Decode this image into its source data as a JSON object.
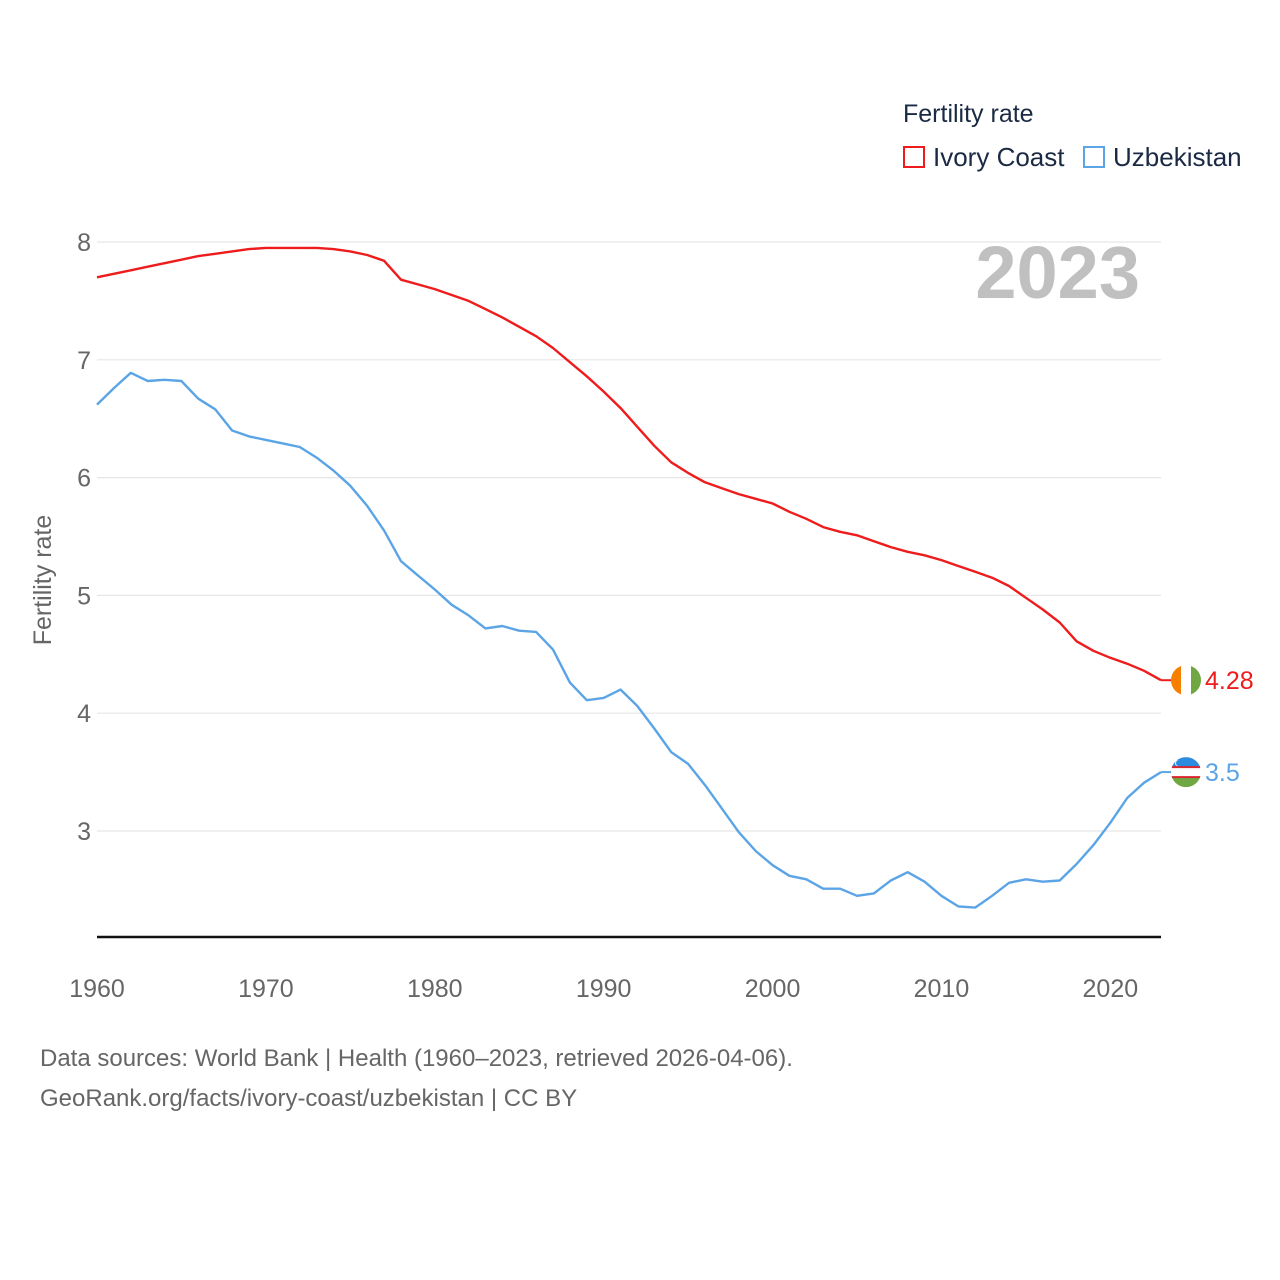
{
  "legend": {
    "title": "Fertility rate",
    "items": [
      {
        "label": "Ivory Coast",
        "color": "#ee1c1c"
      },
      {
        "label": "Uzbekistan",
        "color": "#5ba4e6"
      }
    ]
  },
  "year_label": "2023",
  "source": {
    "line1": "Data sources: World Bank | Health (1960–2023, retrieved 2026-04-06).",
    "line2": "GeoRank.org/facts/ivory-coast/uzbekistan | CC BY"
  },
  "chart_data": {
    "type": "line",
    "title": "Fertility rate",
    "xlabel": "",
    "ylabel": "Fertility rate",
    "xlim": [
      1960,
      2023
    ],
    "ylim": [
      2.1,
      8.2
    ],
    "grid": true,
    "x_ticks": [
      1960,
      1970,
      1980,
      1990,
      2000,
      2010,
      2020
    ],
    "y_ticks": [
      3,
      4,
      5,
      6,
      7,
      8
    ],
    "x": [
      1960,
      1961,
      1962,
      1963,
      1964,
      1965,
      1966,
      1967,
      1968,
      1969,
      1970,
      1971,
      1972,
      1973,
      1974,
      1975,
      1976,
      1977,
      1978,
      1979,
      1980,
      1981,
      1982,
      1983,
      1984,
      1985,
      1986,
      1987,
      1988,
      1989,
      1990,
      1991,
      1992,
      1993,
      1994,
      1995,
      1996,
      1997,
      1998,
      1999,
      2000,
      2001,
      2002,
      2003,
      2004,
      2005,
      2006,
      2007,
      2008,
      2009,
      2010,
      2011,
      2012,
      2013,
      2014,
      2015,
      2016,
      2017,
      2018,
      2019,
      2020,
      2021,
      2022,
      2023
    ],
    "series": [
      {
        "name": "Ivory Coast",
        "color": "#ee1c1c",
        "end_label": "4.28",
        "values": [
          7.7,
          7.73,
          7.76,
          7.79,
          7.82,
          7.85,
          7.88,
          7.9,
          7.92,
          7.94,
          7.95,
          7.95,
          7.95,
          7.95,
          7.94,
          7.92,
          7.89,
          7.84,
          7.68,
          7.64,
          7.6,
          7.55,
          7.5,
          7.43,
          7.36,
          7.28,
          7.2,
          7.1,
          6.98,
          6.86,
          6.73,
          6.59,
          6.43,
          6.27,
          6.13,
          6.04,
          5.96,
          5.91,
          5.86,
          5.82,
          5.78,
          5.71,
          5.65,
          5.58,
          5.54,
          5.51,
          5.46,
          5.41,
          5.37,
          5.34,
          5.3,
          5.25,
          5.2,
          5.15,
          5.08,
          4.98,
          4.88,
          4.77,
          4.61,
          4.53,
          4.47,
          4.42,
          4.36,
          4.28
        ]
      },
      {
        "name": "Uzbekistan",
        "color": "#5ba4e6",
        "end_label": "3.5",
        "values": [
          6.62,
          6.76,
          6.89,
          6.82,
          6.83,
          6.82,
          6.67,
          6.58,
          6.4,
          6.35,
          6.32,
          6.29,
          6.26,
          6.17,
          6.06,
          5.93,
          5.76,
          5.55,
          5.29,
          5.17,
          5.05,
          4.92,
          4.83,
          4.72,
          4.74,
          4.7,
          4.69,
          4.54,
          4.26,
          4.11,
          4.13,
          4.2,
          4.06,
          3.87,
          3.67,
          3.57,
          3.39,
          3.19,
          2.99,
          2.83,
          2.71,
          2.62,
          2.59,
          2.51,
          2.51,
          2.45,
          2.47,
          2.58,
          2.65,
          2.57,
          2.45,
          2.36,
          2.35,
          2.45,
          2.56,
          2.59,
          2.57,
          2.58,
          2.72,
          2.88,
          3.07,
          3.28,
          3.41,
          3.5
        ]
      }
    ]
  }
}
